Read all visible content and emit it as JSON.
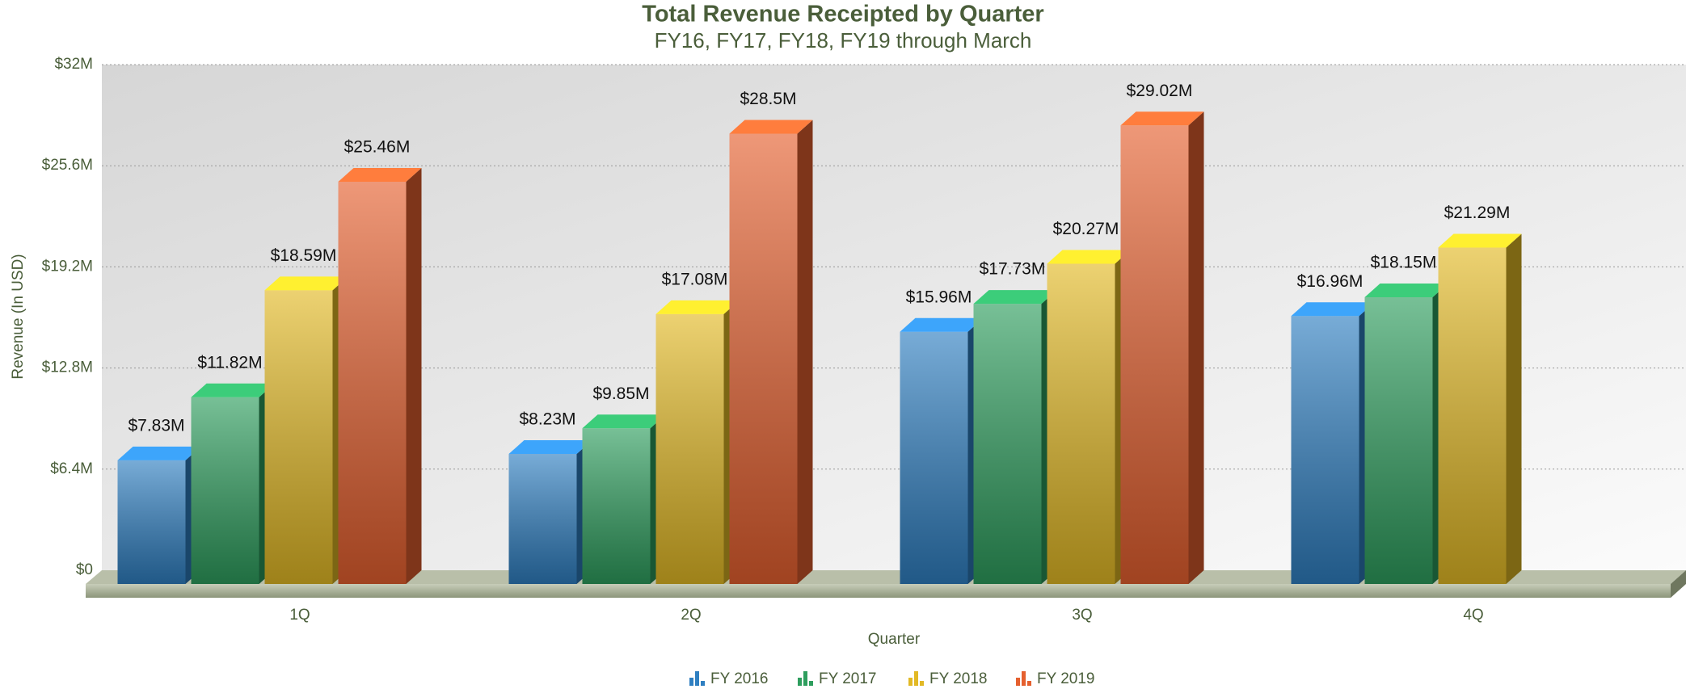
{
  "chart_data": {
    "type": "bar3d",
    "title": "Total Revenue Receipted by Quarter",
    "subtitle": "FY16, FY17, FY18, FY19 through March",
    "x_label": "Quarter",
    "y_label": "Revenue (In USD)",
    "categories": [
      "1Q",
      "2Q",
      "3Q",
      "4Q"
    ],
    "series": [
      {
        "name": "FY 2016",
        "color": "#2f7fc1",
        "values": [
          7.83,
          8.23,
          15.96,
          16.96
        ],
        "value_labels": [
          "$7.83M",
          "$8.23M",
          "$15.96M",
          "$16.96M"
        ]
      },
      {
        "name": "FY 2017",
        "color": "#2e9e5e",
        "values": [
          11.82,
          9.85,
          17.73,
          18.15
        ],
        "value_labels": [
          "$11.82M",
          "$9.85M",
          "$17.73M",
          "$18.15M"
        ]
      },
      {
        "name": "FY 2018",
        "color": "#e2b925",
        "values": [
          18.59,
          17.08,
          20.27,
          21.29
        ],
        "value_labels": [
          "$18.59M",
          "$17.08M",
          "$20.27M",
          "$21.29M"
        ]
      },
      {
        "name": "FY 2019",
        "color": "#e5602f",
        "values": [
          25.46,
          28.5,
          29.02,
          null
        ],
        "value_labels": [
          "$25.46M",
          "$28.5M",
          "$29.02M",
          null
        ]
      }
    ],
    "ylim": [
      0,
      32
    ],
    "yticks": [
      {
        "value": 0,
        "label": "$0"
      },
      {
        "value": 6.4,
        "label": "$6.4M"
      },
      {
        "value": 12.8,
        "label": "$12.8M"
      },
      {
        "value": 19.2,
        "label": "$19.2M"
      },
      {
        "value": 25.6,
        "label": "$25.6M"
      },
      {
        "value": 32,
        "label": "$32M"
      }
    ],
    "grid": true,
    "legend": "bottom"
  }
}
